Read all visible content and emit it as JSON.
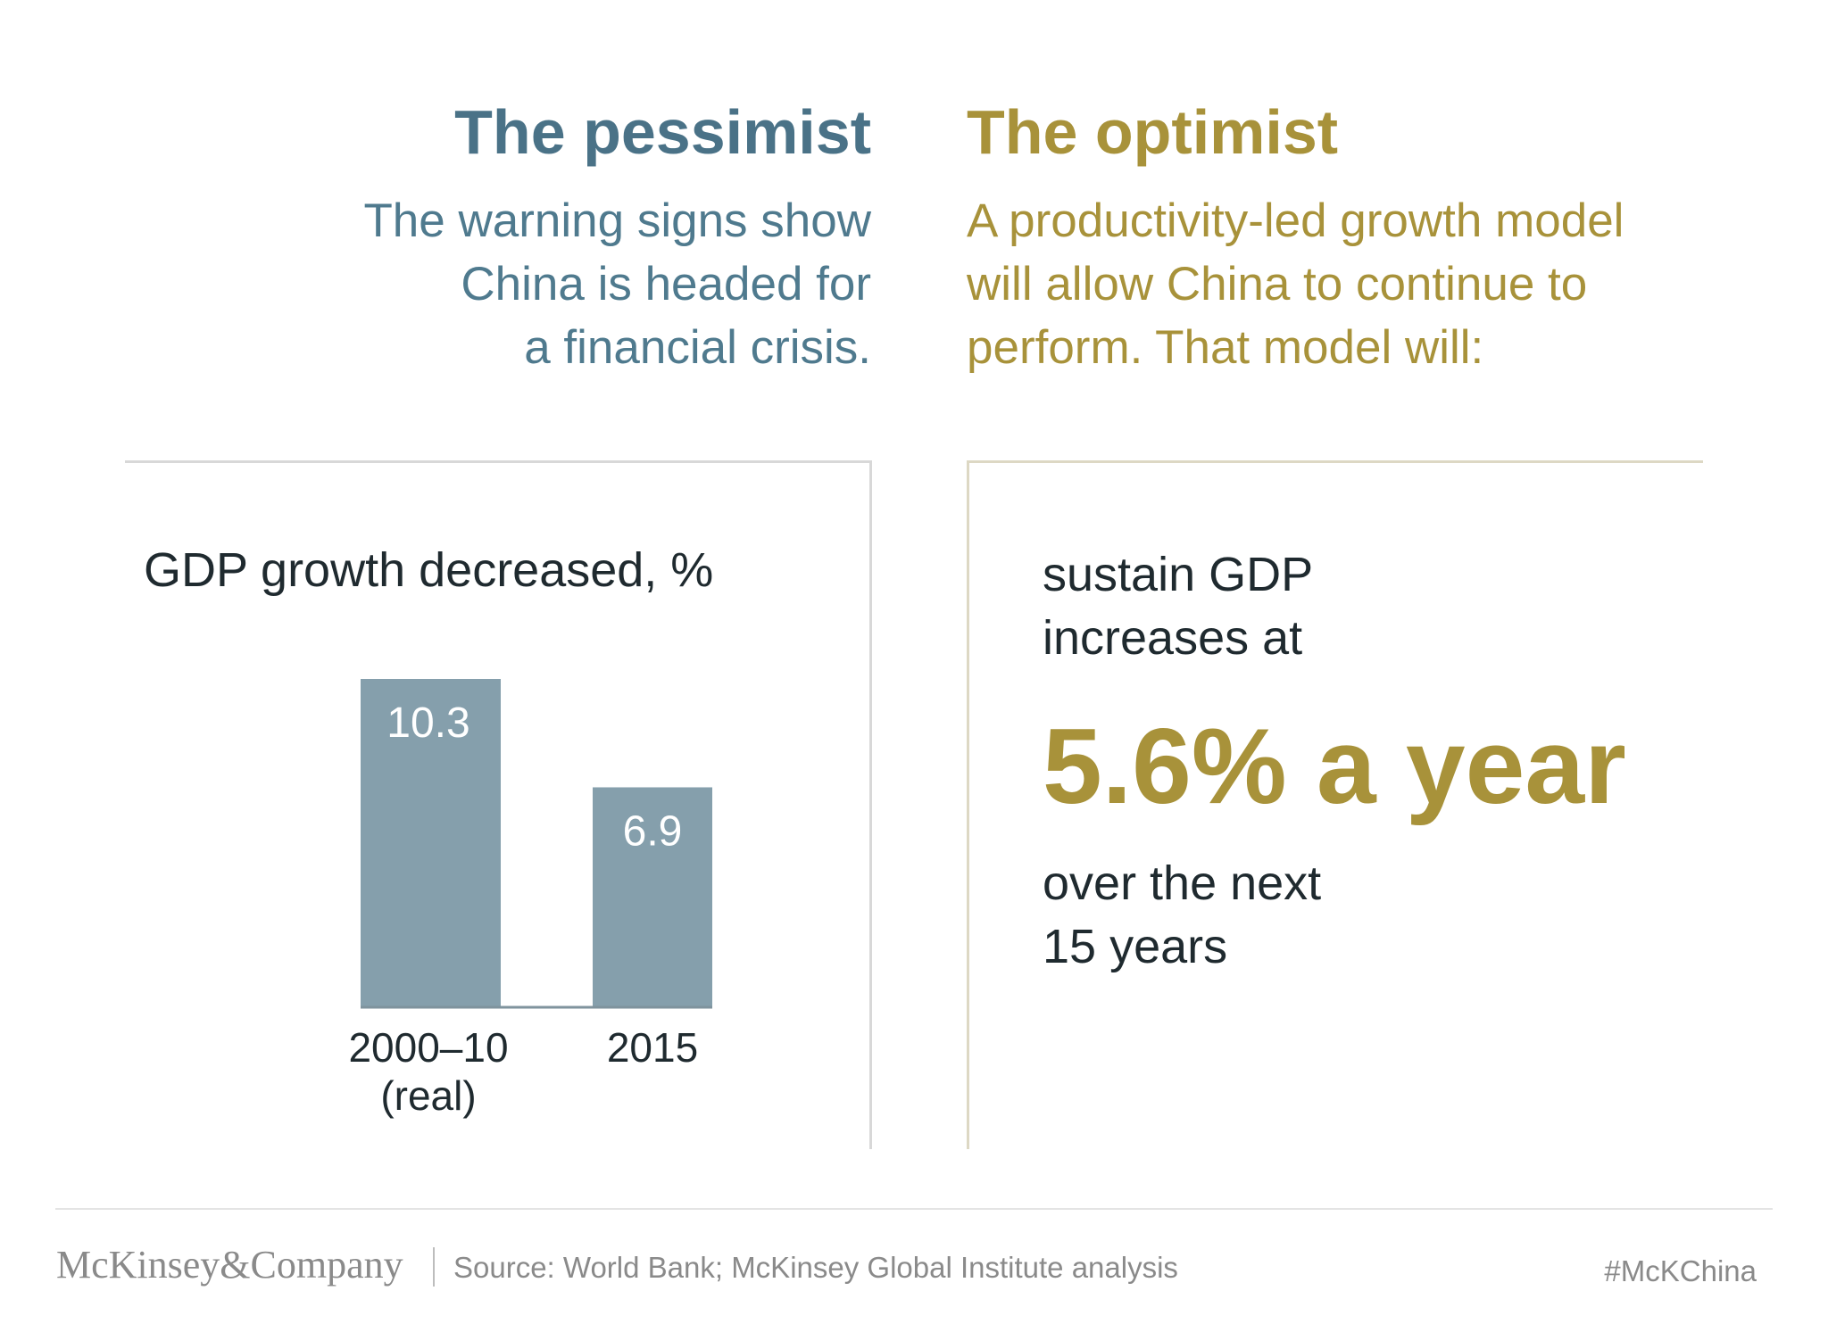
{
  "pessimist": {
    "title": "The pessimist",
    "lines": [
      "The warning signs show",
      "China is headed for",
      "a financial crisis."
    ]
  },
  "optimist": {
    "title": "The optimist",
    "lines": [
      "A productivity-led growth model",
      "will allow China to continue to",
      "perform. That model will:"
    ],
    "body1": [
      "sustain GDP",
      "increases at"
    ],
    "highlight": "5.6% a year",
    "body2": [
      "over the next",
      "15 years"
    ]
  },
  "chart_data": {
    "type": "bar",
    "title": "GDP growth decreased, %",
    "categories": [
      "2000–10\n(real)",
      "2015"
    ],
    "values": [
      10.3,
      6.9
    ],
    "value_labels": [
      "10.3",
      "6.9"
    ],
    "ylim": [
      0,
      10.3
    ],
    "grid": false,
    "colors": {
      "bar": "#859fac",
      "label": "#ffffff",
      "axis": "#7f939d"
    }
  },
  "footer": {
    "logo": "McKinsey&Company",
    "source": "Source: World Bank; McKinsey Global Institute analysis",
    "hashtag": "#McKChina"
  },
  "colors": {
    "pessimist": "#4a7287",
    "optimist": "#a8923a",
    "text": "#1f2a2f",
    "muted": "#8a8a8a"
  }
}
